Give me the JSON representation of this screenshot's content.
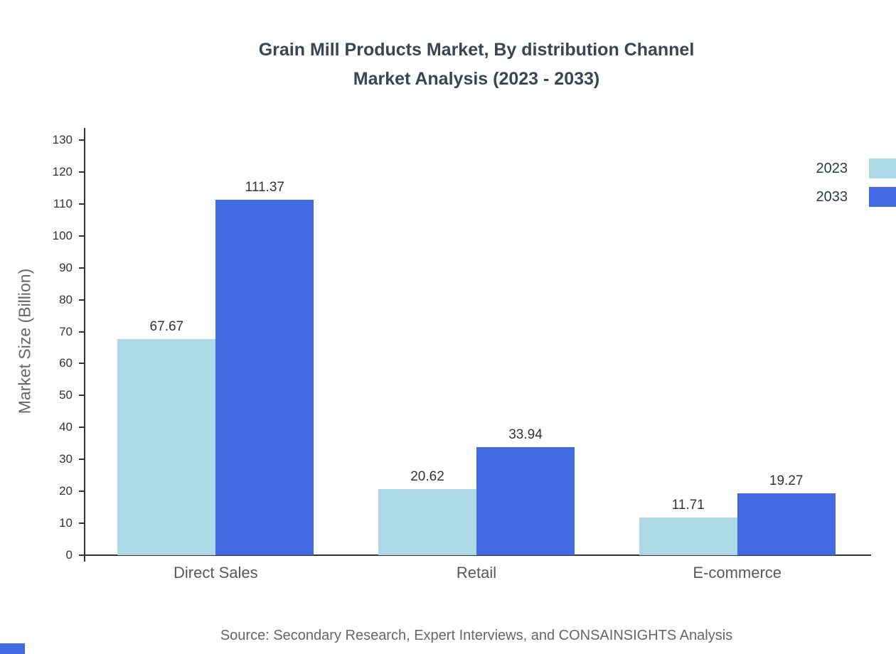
{
  "title": {
    "line1": "Grain Mill Products Market, By distribution Channel",
    "line2": "Market Analysis (2023 - 2033)"
  },
  "source": "Source: Secondary Research, Expert Interviews, and CONSAINSIGHTS Analysis",
  "colors": {
    "series_2023": "#ADD8E6",
    "series_2033": "#4169E1",
    "axis": "#333333",
    "accent": "#4169E1"
  },
  "chart_data": {
    "type": "bar",
    "title": "Grain Mill Products Market, By distribution Channel Market Analysis (2023 - 2033)",
    "categories": [
      "Direct Sales",
      "Retail",
      "E-commerce"
    ],
    "series": [
      {
        "name": "2023",
        "color": "#ADD8E6",
        "values": [
          67.67,
          20.62,
          11.71
        ]
      },
      {
        "name": "2033",
        "color": "#4169E1",
        "values": [
          111.37,
          33.94,
          19.27
        ]
      }
    ],
    "xlabel": "",
    "ylabel": "Market Size (Billion)",
    "ylim": [
      0,
      130
    ],
    "y_tick_step": 10,
    "grid": false,
    "legend_position": "top-right"
  }
}
